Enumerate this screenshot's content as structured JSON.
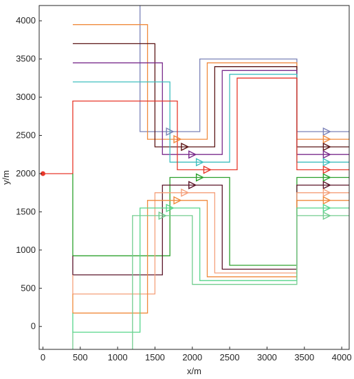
{
  "chart_data": {
    "type": "line",
    "xlabel": "x/m",
    "ylabel": "y/m",
    "xlim": [
      -50,
      4100
    ],
    "ylim": [
      -300,
      4200
    ],
    "xticks": [
      0,
      500,
      1000,
      1500,
      2000,
      2500,
      3000,
      3500,
      4000
    ],
    "yticks": [
      0,
      500,
      1000,
      1500,
      2000,
      2500,
      3000,
      3500,
      4000
    ],
    "start_point": {
      "x": 0,
      "y": 2000,
      "color": "#e8382a"
    },
    "series": [
      {
        "color": "#7b82b8",
        "points": [
          [
            1300,
            4200
          ],
          [
            1300,
            2550
          ],
          [
            2100,
            2550
          ],
          [
            2100,
            3500
          ],
          [
            3400,
            3500
          ],
          [
            3400,
            2550
          ],
          [
            3800,
            2550
          ],
          [
            4100,
            2550
          ]
        ]
      },
      {
        "color": "#f08a3c",
        "points": [
          [
            400,
            3950
          ],
          [
            1400,
            3950
          ],
          [
            1400,
            2450
          ],
          [
            2200,
            2450
          ],
          [
            2200,
            3450
          ],
          [
            3400,
            3450
          ],
          [
            3400,
            2450
          ],
          [
            3800,
            2450
          ],
          [
            4100,
            2450
          ]
        ]
      },
      {
        "color": "#5a1414",
        "points": [
          [
            400,
            3700
          ],
          [
            1500,
            3700
          ],
          [
            1500,
            2350
          ],
          [
            2300,
            2350
          ],
          [
            2300,
            3400
          ],
          [
            3400,
            3400
          ],
          [
            3400,
            2350
          ],
          [
            3800,
            2350
          ],
          [
            4100,
            2350
          ]
        ]
      },
      {
        "color": "#7a2b8c",
        "points": [
          [
            400,
            3450
          ],
          [
            1600,
            3450
          ],
          [
            1600,
            2250
          ],
          [
            2400,
            2250
          ],
          [
            2400,
            3350
          ],
          [
            3400,
            3350
          ],
          [
            3400,
            2250
          ],
          [
            3800,
            2250
          ],
          [
            4100,
            2250
          ]
        ]
      },
      {
        "color": "#3fbfbf",
        "points": [
          [
            400,
            3200
          ],
          [
            1700,
            3200
          ],
          [
            1700,
            2150
          ],
          [
            2500,
            2150
          ],
          [
            2500,
            3300
          ],
          [
            3400,
            3300
          ],
          [
            3400,
            2150
          ],
          [
            3800,
            2150
          ],
          [
            4100,
            2150
          ]
        ]
      },
      {
        "color": "#e8382a",
        "points": [
          [
            0,
            2000
          ],
          [
            400,
            2000
          ],
          [
            400,
            2950
          ],
          [
            1800,
            2950
          ],
          [
            1800,
            2050
          ],
          [
            2600,
            2050
          ],
          [
            2600,
            3250
          ],
          [
            3400,
            3250
          ],
          [
            3400,
            2050
          ],
          [
            3800,
            2050
          ],
          [
            4100,
            2050
          ]
        ]
      },
      {
        "color": "#2ca02c",
        "points": [
          [
            400,
            2000
          ],
          [
            400,
            925
          ],
          [
            1700,
            925
          ],
          [
            1700,
            1950
          ],
          [
            2500,
            1950
          ],
          [
            2500,
            800
          ],
          [
            3400,
            800
          ],
          [
            3400,
            1950
          ],
          [
            3800,
            1950
          ],
          [
            4100,
            1950
          ]
        ]
      },
      {
        "color": "#5a1428",
        "points": [
          [
            400,
            925
          ],
          [
            400,
            675
          ],
          [
            1600,
            675
          ],
          [
            1600,
            1850
          ],
          [
            2400,
            1850
          ],
          [
            2400,
            750
          ],
          [
            3400,
            750
          ],
          [
            3400,
            1850
          ],
          [
            3800,
            1850
          ],
          [
            4100,
            1850
          ]
        ]
      },
      {
        "color": "#f5a07a",
        "points": [
          [
            400,
            675
          ],
          [
            400,
            425
          ],
          [
            1500,
            425
          ],
          [
            1500,
            1750
          ],
          [
            2300,
            1750
          ],
          [
            2300,
            700
          ],
          [
            3400,
            700
          ],
          [
            3400,
            1750
          ],
          [
            3800,
            1750
          ],
          [
            4100,
            1750
          ]
        ]
      },
      {
        "color": "#f08a3c",
        "points": [
          [
            400,
            425
          ],
          [
            400,
            175
          ],
          [
            1400,
            175
          ],
          [
            1400,
            1650
          ],
          [
            2200,
            1650
          ],
          [
            2200,
            650
          ],
          [
            3400,
            650
          ],
          [
            3400,
            1650
          ],
          [
            3800,
            1650
          ],
          [
            4100,
            1650
          ]
        ]
      },
      {
        "color": "#55d68a",
        "points": [
          [
            400,
            175
          ],
          [
            400,
            -75
          ],
          [
            1300,
            -75
          ],
          [
            1300,
            1550
          ],
          [
            2100,
            1550
          ],
          [
            2100,
            600
          ],
          [
            3400,
            600
          ],
          [
            3400,
            1550
          ],
          [
            3800,
            1550
          ],
          [
            4100,
            1550
          ]
        ]
      },
      {
        "color": "#72cc8f",
        "points": [
          [
            400,
            -75
          ],
          [
            400,
            -300
          ]
        ]
      },
      {
        "color": "#72cc8f",
        "points": [
          [
            1200,
            -300
          ],
          [
            1200,
            1450
          ],
          [
            2000,
            1450
          ],
          [
            2000,
            550
          ],
          [
            3400,
            550
          ],
          [
            3400,
            1450
          ],
          [
            3800,
            1450
          ],
          [
            4100,
            1450
          ]
        ]
      }
    ],
    "markers": [
      {
        "x": 1700,
        "y": 2550,
        "color": "#7b82b8"
      },
      {
        "x": 1800,
        "y": 2450,
        "color": "#f08a3c"
      },
      {
        "x": 1900,
        "y": 2350,
        "color": "#5a1414"
      },
      {
        "x": 2000,
        "y": 2250,
        "color": "#7a2b8c"
      },
      {
        "x": 2100,
        "y": 2150,
        "color": "#3fbfbf"
      },
      {
        "x": 2200,
        "y": 2050,
        "color": "#e8382a"
      },
      {
        "x": 2100,
        "y": 1950,
        "color": "#2ca02c"
      },
      {
        "x": 2000,
        "y": 1850,
        "color": "#5a1428"
      },
      {
        "x": 1900,
        "y": 1750,
        "color": "#f5a07a"
      },
      {
        "x": 1800,
        "y": 1650,
        "color": "#f08a3c"
      },
      {
        "x": 1700,
        "y": 1550,
        "color": "#55d68a"
      },
      {
        "x": 1600,
        "y": 1450,
        "color": "#72cc8f"
      },
      {
        "x": 3800,
        "y": 2550,
        "color": "#7b82b8"
      },
      {
        "x": 3800,
        "y": 2450,
        "color": "#f08a3c"
      },
      {
        "x": 3800,
        "y": 2350,
        "color": "#5a1414"
      },
      {
        "x": 3800,
        "y": 2250,
        "color": "#7a2b8c"
      },
      {
        "x": 3800,
        "y": 2150,
        "color": "#3fbfbf"
      },
      {
        "x": 3800,
        "y": 2050,
        "color": "#e8382a"
      },
      {
        "x": 3800,
        "y": 1950,
        "color": "#2ca02c"
      },
      {
        "x": 3800,
        "y": 1850,
        "color": "#5a1428"
      },
      {
        "x": 3800,
        "y": 1750,
        "color": "#f5a07a"
      },
      {
        "x": 3800,
        "y": 1650,
        "color": "#f08a3c"
      },
      {
        "x": 3800,
        "y": 1550,
        "color": "#55d68a"
      },
      {
        "x": 3800,
        "y": 1450,
        "color": "#72cc8f"
      }
    ],
    "grid": false,
    "legend": "none"
  }
}
